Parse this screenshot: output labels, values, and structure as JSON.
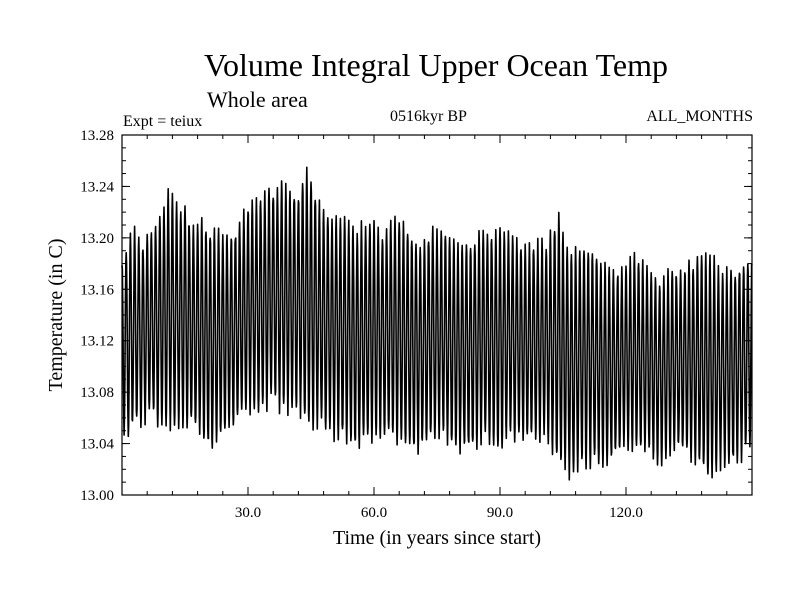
{
  "chart_data": {
    "type": "line",
    "title": "Volume Integral Upper Ocean Temp",
    "subtitle": "Whole area",
    "experiment_label": "Expt = teiux",
    "period_label": "0516kyr BP",
    "months_label": "ALL_MONTHS",
    "xlabel": "Time (in years since start)",
    "ylabel": "Temperature (in C)",
    "xlim": [
      0,
      150
    ],
    "ylim": [
      13.0,
      13.28
    ],
    "x_ticks": [
      30,
      60,
      90,
      120
    ],
    "x_tick_labels": [
      "30.0",
      "60.0",
      "90.0",
      "120.0"
    ],
    "x_minor_step": 6,
    "y_ticks": [
      13.0,
      13.04,
      13.08,
      13.12,
      13.16,
      13.2,
      13.24,
      13.28
    ],
    "y_tick_labels": [
      "13.00",
      "13.04",
      "13.08",
      "13.12",
      "13.16",
      "13.20",
      "13.24",
      "13.28"
    ],
    "y_minor_step": 0.01,
    "grid": false,
    "series": [
      {
        "name": "Upper ocean temperature",
        "sampling": "monthly (seasonal cycle)",
        "annual_envelope": {
          "years": [
            0,
            1,
            3,
            5,
            7,
            9,
            11,
            13,
            15,
            17,
            19,
            21,
            24,
            27,
            30,
            33,
            36,
            38,
            40,
            42,
            44,
            47,
            50,
            53,
            56,
            59,
            62,
            65,
            68,
            71,
            74,
            77,
            80,
            83,
            86,
            89,
            92,
            95,
            98,
            101,
            104,
            107,
            110,
            113,
            116,
            119,
            122,
            125,
            128,
            131,
            134,
            137,
            140,
            143,
            146,
            149,
            150
          ],
          "max": [
            13.19,
            13.2,
            13.21,
            13.2,
            13.21,
            13.22,
            13.24,
            13.23,
            13.23,
            13.21,
            13.22,
            13.21,
            13.21,
            13.21,
            13.23,
            13.24,
            13.24,
            13.25,
            13.24,
            13.24,
            13.26,
            13.23,
            13.22,
            13.22,
            13.21,
            13.22,
            13.21,
            13.22,
            13.21,
            13.2,
            13.21,
            13.21,
            13.2,
            13.2,
            13.21,
            13.21,
            13.21,
            13.2,
            13.2,
            13.2,
            13.22,
            13.19,
            13.2,
            13.19,
            13.18,
            13.18,
            13.19,
            13.18,
            13.17,
            13.18,
            13.18,
            13.19,
            13.19,
            13.18,
            13.18,
            13.19,
            13.19
          ],
          "min": [
            13.05,
            13.04,
            13.05,
            13.05,
            13.06,
            13.05,
            13.05,
            13.05,
            13.05,
            13.05,
            13.04,
            13.03,
            13.04,
            13.05,
            13.06,
            13.06,
            13.07,
            13.06,
            13.06,
            13.06,
            13.05,
            13.05,
            13.04,
            13.04,
            13.03,
            13.04,
            13.04,
            13.04,
            13.03,
            13.03,
            13.04,
            13.04,
            13.03,
            13.03,
            13.04,
            13.03,
            13.04,
            13.04,
            13.04,
            13.04,
            13.02,
            13.01,
            13.02,
            13.02,
            13.02,
            13.03,
            13.03,
            13.03,
            13.02,
            13.03,
            13.03,
            13.02,
            13.01,
            13.02,
            13.02,
            13.03,
            13.04
          ]
        }
      }
    ]
  }
}
